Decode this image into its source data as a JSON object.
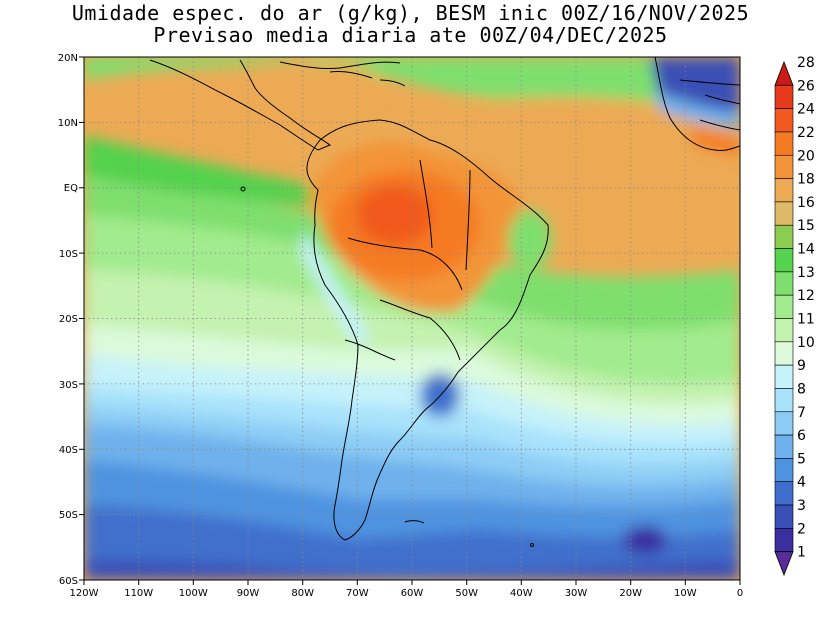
{
  "title_line1": "Umidade espec. do ar (g/kg), BESM inic 00Z/16/NOV/2025",
  "title_line2": "Previsao media diaria ate 00Z/04/DEC/2025",
  "map": {
    "lon_range": [
      -120,
      0
    ],
    "lat_range": [
      -60,
      20
    ],
    "grid": true,
    "lat_ticks": [
      "20N",
      "10N",
      "EQ",
      "10S",
      "20S",
      "30S",
      "40S",
      "50S",
      "60S"
    ],
    "lon_ticks": [
      "120W",
      "110W",
      "100W",
      "90W",
      "80W",
      "70W",
      "60W",
      "50W",
      "40W",
      "30W",
      "20W",
      "10W",
      "0"
    ]
  },
  "colorbar": {
    "levels": [
      "1",
      "2",
      "3",
      "4",
      "5",
      "6",
      "7",
      "8",
      "9",
      "10",
      "11",
      "12",
      "13",
      "14",
      "15",
      "16",
      "18",
      "20",
      "22",
      "24",
      "26",
      "28"
    ],
    "colors": [
      "#5a2d9c",
      "#3b2fa0",
      "#3a4fb5",
      "#3f6fcc",
      "#4f93e0",
      "#6fb1ec",
      "#8dcdf5",
      "#a8e2fb",
      "#c6f2fa",
      "#dcfadc",
      "#c4f2b0",
      "#a2eb8e",
      "#7fdf6e",
      "#55d24e",
      "#8ccc50",
      "#dfb96a",
      "#ecaa55",
      "#f39439",
      "#f57a22",
      "#f15a1e",
      "#e63a1a",
      "#cc1a14"
    ]
  }
}
